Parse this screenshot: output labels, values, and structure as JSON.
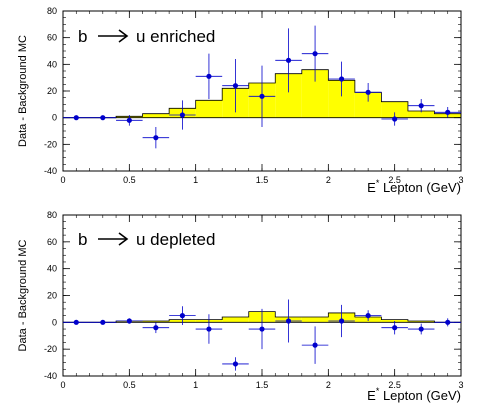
{
  "chart_data": [
    {
      "type": "line",
      "annotation": {
        "left": "b",
        "right": "u enriched"
      },
      "xlabel_main": "E",
      "xlabel_sup": "*",
      "xlabel_rest": " Lepton (GeV)",
      "ylabel": "Data - Background MC",
      "xlim": [
        0,
        3
      ],
      "ylim": [
        -40,
        80
      ],
      "xticks": [
        0,
        0.5,
        1,
        1.5,
        2,
        2.5,
        3
      ],
      "xtick_labels": [
        "0",
        "0.5",
        "1",
        "1.5",
        "2",
        "2.5",
        "3"
      ],
      "yticks": [
        -40,
        -20,
        0,
        20,
        40,
        60,
        80
      ],
      "ytick_labels": [
        "-40",
        "-20",
        "0",
        "20",
        "40",
        "60",
        "80"
      ],
      "bin_width": 0.2,
      "histogram": {
        "color": "#ffff00",
        "bins": [
          0.0,
          0.2,
          0.4,
          0.6,
          0.8,
          1.0,
          1.2,
          1.4,
          1.6,
          1.8,
          2.0,
          2.2,
          2.4,
          2.6,
          2.8
        ],
        "values": [
          0,
          0,
          1,
          3,
          7,
          13,
          22,
          26,
          33,
          36,
          28,
          19,
          12,
          5,
          3
        ]
      },
      "points": {
        "color": "#0000cc",
        "x": [
          0.1,
          0.3,
          0.5,
          0.7,
          0.9,
          1.1,
          1.3,
          1.5,
          1.7,
          1.9,
          2.1,
          2.3,
          2.5,
          2.7,
          2.9
        ],
        "y": [
          0,
          0,
          -2,
          -15,
          2,
          31,
          24,
          16,
          43,
          48,
          29,
          19,
          -1,
          9,
          4
        ],
        "yerr": [
          0,
          0,
          4,
          8,
          11,
          17,
          20,
          23,
          24,
          21,
          13,
          7,
          5,
          5,
          4
        ]
      }
    },
    {
      "type": "line",
      "annotation": {
        "left": "b",
        "right": "u depleted"
      },
      "xlabel_main": "E",
      "xlabel_sup": "*",
      "xlabel_rest": " Lepton (GeV)",
      "ylabel": "Data - Background MC",
      "xlim": [
        0,
        3
      ],
      "ylim": [
        -40,
        80
      ],
      "xticks": [
        0,
        0.5,
        1,
        1.5,
        2,
        2.5,
        3
      ],
      "xtick_labels": [
        "0",
        "0.5",
        "1",
        "1.5",
        "2",
        "2.5",
        "3"
      ],
      "yticks": [
        -40,
        -20,
        0,
        20,
        40,
        60,
        80
      ],
      "ytick_labels": [
        "-40",
        "-20",
        "0",
        "20",
        "40",
        "60",
        "80"
      ],
      "bin_width": 0.2,
      "histogram": {
        "color": "#ffff00",
        "bins": [
          0.0,
          0.2,
          0.4,
          0.6,
          0.8,
          1.0,
          1.2,
          1.4,
          1.6,
          1.8,
          2.0,
          2.2,
          2.4,
          2.6,
          2.8
        ],
        "values": [
          0,
          0,
          1,
          1,
          2,
          2,
          4,
          8,
          4,
          4,
          7,
          4,
          2,
          1,
          0
        ]
      },
      "points": {
        "color": "#0000cc",
        "x": [
          0.1,
          0.3,
          0.5,
          0.7,
          0.9,
          1.1,
          1.3,
          1.5,
          1.7,
          1.9,
          2.1,
          2.3,
          2.5,
          2.7,
          2.9
        ],
        "y": [
          0,
          0,
          1,
          -4,
          5,
          -5,
          -31,
          -5,
          1,
          -17,
          1,
          5,
          -4,
          -5,
          0
        ],
        "yerr": [
          0,
          0,
          2,
          4,
          7,
          11,
          5,
          15,
          16,
          14,
          12,
          4,
          5,
          4,
          3
        ]
      }
    }
  ]
}
